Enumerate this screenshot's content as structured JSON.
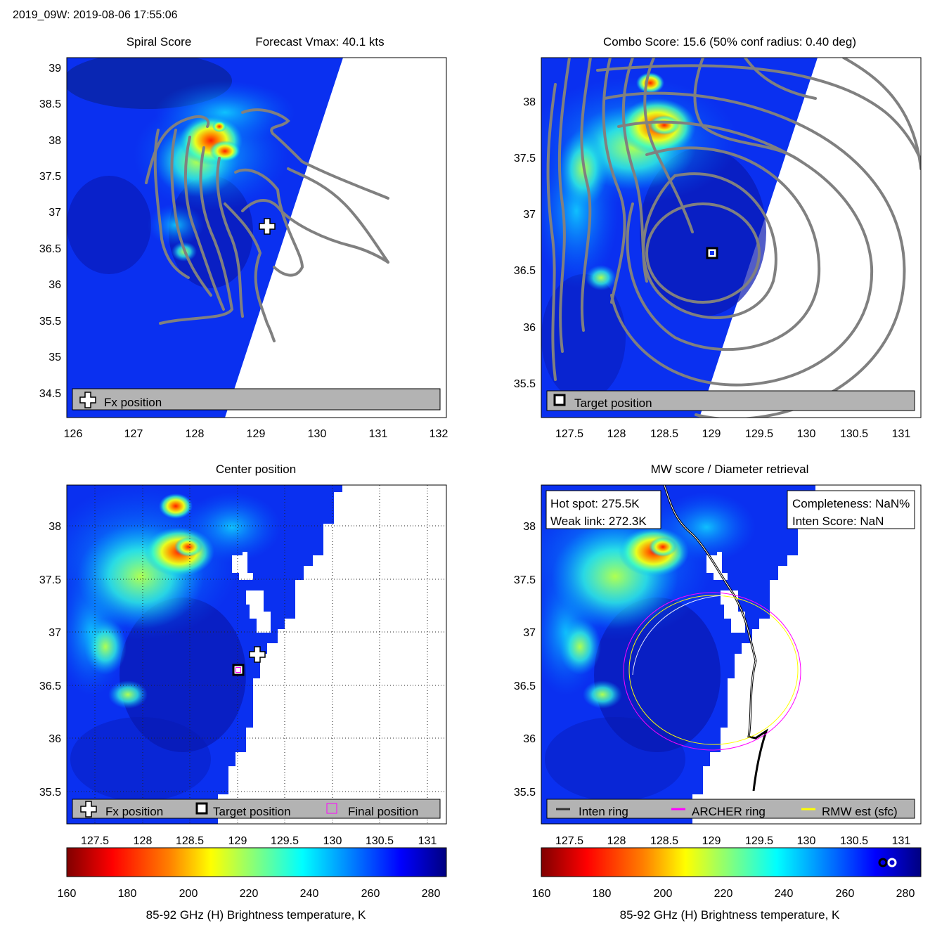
{
  "figure": {
    "header": "2019_09W: 2019-08-06 17:55:06"
  },
  "panels": {
    "spiral": {
      "title_left": "Spiral Score",
      "title_right": "Forecast Vmax: 40.1 kts",
      "legend": [
        "Fx position"
      ]
    },
    "combo": {
      "title": "Combo Score: 15.6  (50% conf radius: 0.40 deg)",
      "legend": [
        "Target position"
      ]
    },
    "center": {
      "title": "Center position",
      "legend": [
        "Fx position",
        "Target position",
        "Final position"
      ]
    },
    "mw": {
      "title": "MW score / Diameter retrieval",
      "info_left": [
        "Hot spot: 275.5K",
        "Weak link: 272.3K"
      ],
      "info_right": [
        "Completeness: NaN%",
        "Inten Score: NaN"
      ],
      "legend": [
        "Inten ring",
        "ARCHER ring",
        "RMW est (sfc)"
      ]
    }
  },
  "colorbar": {
    "label": "85-92 GHz (H) Brightness temperature, K",
    "ticks": [
      "160",
      "180",
      "200",
      "220",
      "240",
      "260",
      "280"
    ],
    "range": [
      160,
      285
    ]
  },
  "colors": {
    "contour": "#808080",
    "archer_ring": "#ff00ff",
    "rmw_ring": "#ffff00",
    "inten_ring": "#333333",
    "legend_box": "#b3b3b3"
  },
  "chart_data": [
    {
      "type": "heatmap",
      "panel": "spiral",
      "title": "Spiral Score  Forecast Vmax: 40.1 kts",
      "xlim": [
        126,
        132
      ],
      "ylim": [
        34.1,
        39.2
      ],
      "xticks": [
        "126",
        "127",
        "128",
        "129",
        "130",
        "131",
        "132"
      ],
      "yticks": [
        "34.5",
        "35",
        "35.5",
        "36",
        "36.5",
        "37",
        "37.5",
        "38",
        "38.5",
        "39"
      ],
      "grid": false,
      "legend_position": "bottom",
      "fx_position": [
        129.2,
        36.8
      ]
    },
    {
      "type": "heatmap",
      "panel": "combo",
      "title": "Combo Score: 15.6  (50% conf radius: 0.40 deg)",
      "xlim": [
        127.2,
        131.2
      ],
      "ylim": [
        35.2,
        38.4
      ],
      "xticks": [
        "127.5",
        "128",
        "128.5",
        "129",
        "129.5",
        "130",
        "130.5",
        "131"
      ],
      "yticks": [
        "35.5",
        "36",
        "36.5",
        "37",
        "37.5",
        "38"
      ],
      "grid": false,
      "legend_position": "bottom",
      "target_position": [
        129.0,
        36.65
      ]
    },
    {
      "type": "heatmap",
      "panel": "center",
      "title": "Center position",
      "xlim": [
        127.2,
        131.2
      ],
      "ylim": [
        35.2,
        38.4
      ],
      "xticks": [
        "127.5",
        "128",
        "128.5",
        "129",
        "129.5",
        "130",
        "130.5",
        "131"
      ],
      "yticks": [
        "35.5",
        "36",
        "36.5",
        "37",
        "37.5",
        "38"
      ],
      "grid": true,
      "legend_position": "bottom",
      "fx_position": [
        129.2,
        36.8
      ],
      "target_position": [
        129.0,
        36.65
      ],
      "final_position": [
        129.0,
        36.65
      ]
    },
    {
      "type": "heatmap",
      "panel": "mw",
      "title": "MW score / Diameter retrieval",
      "xlim": [
        127.2,
        131.2
      ],
      "ylim": [
        35.2,
        38.4
      ],
      "xticks": [
        "127.5",
        "128",
        "128.5",
        "129",
        "129.5",
        "130",
        "130.5",
        "131"
      ],
      "yticks": [
        "35.5",
        "36",
        "36.5",
        "37",
        "37.5",
        "38"
      ],
      "grid": false,
      "legend_position": "bottom",
      "archer_ring": {
        "center": [
          129.0,
          36.65
        ],
        "radius_deg": 0.7
      },
      "rmw_ring": {
        "center": [
          129.0,
          36.65
        ],
        "radius_deg": 0.66
      }
    }
  ]
}
